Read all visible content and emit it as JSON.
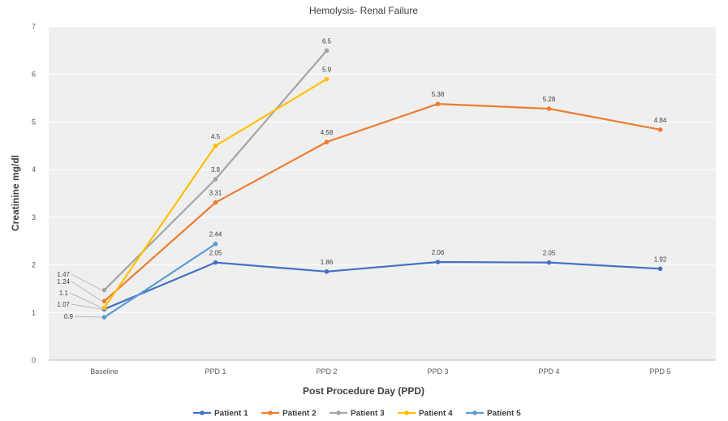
{
  "chart_data": {
    "type": "line",
    "title": "Hemolysis- Renal Failure",
    "xlabel": "Post Procedure Day (PPD)",
    "ylabel": "Creatinine mg/dl",
    "categories": [
      "Baseline",
      "PPD 1",
      "PPD 2",
      "PPD 3",
      "PPD 4",
      "PPD 5"
    ],
    "ylim": [
      0,
      7
    ],
    "yticks": [
      "0",
      "1",
      "2",
      "3",
      "4",
      "5",
      "6",
      "7"
    ],
    "grid": true,
    "legend_position": "bottom",
    "series": [
      {
        "name": "Patient 1",
        "color": "#4472C4",
        "values": [
          1.07,
          2.05,
          1.86,
          2.06,
          2.05,
          1.92
        ],
        "labels": [
          "1.07",
          "2.05",
          "1.86",
          "2.06",
          "2.05",
          "1.92"
        ]
      },
      {
        "name": "Patient 2",
        "color": "#ED7D31",
        "values": [
          1.24,
          3.31,
          4.58,
          5.38,
          5.28,
          4.84
        ],
        "labels": [
          "1.24",
          "3.31",
          "4.58",
          "5.38",
          "5.28",
          "4.84"
        ]
      },
      {
        "name": "Patient 3",
        "color": "#A5A5A5",
        "values": [
          1.47,
          3.8,
          6.5,
          null,
          null,
          null
        ],
        "labels": [
          "1.47",
          "3.8",
          "6.5",
          "",
          "",
          ""
        ]
      },
      {
        "name": "Patient 4",
        "color": "#FFC000",
        "values": [
          1.1,
          4.5,
          5.9,
          null,
          null,
          null
        ],
        "labels": [
          "1.1",
          "4.5",
          "5.9",
          "",
          "",
          ""
        ]
      },
      {
        "name": "Patient 5",
        "color": "#5B9BD5",
        "values": [
          0.9,
          2.44,
          null,
          null,
          null,
          null
        ],
        "labels": [
          "0.9",
          "2.44",
          "",
          "",
          "",
          ""
        ]
      }
    ]
  }
}
